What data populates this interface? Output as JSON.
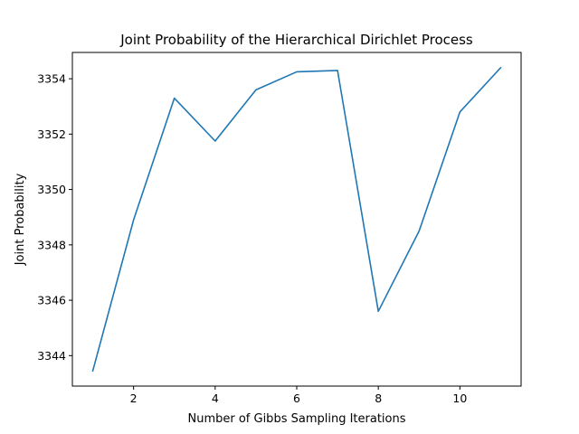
{
  "chart_data": {
    "type": "line",
    "title": "Joint Probability of the Hierarchical Dirichlet Process",
    "xlabel": "Number of Gibbs Sampling Iterations",
    "ylabel": "Joint Probability",
    "x": [
      1,
      2,
      3,
      4,
      5,
      6,
      7,
      8,
      9,
      10,
      11
    ],
    "series": [
      {
        "values": [
          3343.45,
          3348.9,
          3353.3,
          3351.75,
          3353.6,
          3354.25,
          3354.3,
          3345.6,
          3348.5,
          3352.8,
          3354.4
        ],
        "color": "#1f77b4"
      }
    ],
    "xticks": [
      2,
      4,
      6,
      8,
      10
    ],
    "yticks": [
      3344,
      3346,
      3348,
      3350,
      3352,
      3354
    ],
    "xlim": [
      0.5,
      11.5
    ],
    "ylim": [
      3342.9,
      3354.95
    ],
    "grid": false,
    "legend": false
  }
}
